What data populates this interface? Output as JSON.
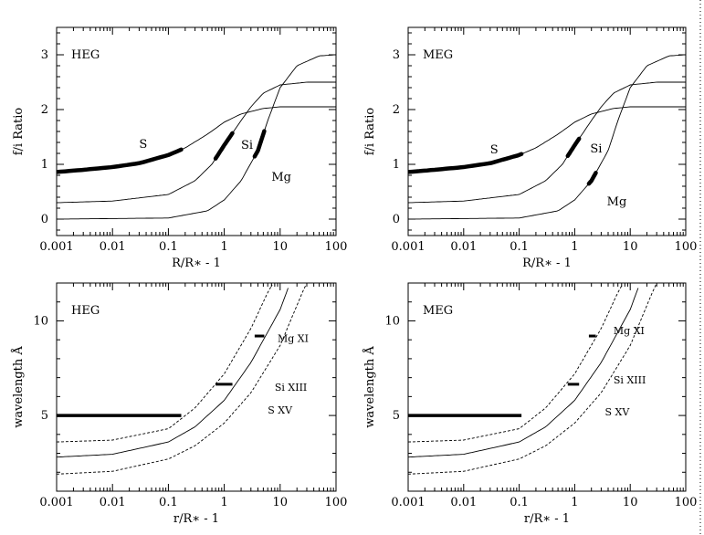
{
  "chart_data": [
    {
      "id": "heg-ratio",
      "type": "line",
      "panel_label": "HEG",
      "xlabel": "R/R∗ - 1",
      "ylabel": "f/i Ratio",
      "xscale": "log",
      "xlim": [
        0.001,
        100
      ],
      "ylim": [
        -0.3,
        3.5
      ],
      "x_ticks": [
        0.001,
        0.01,
        0.1,
        1,
        10,
        100
      ],
      "x_tick_labels": [
        "0.001",
        "0.01",
        "0.1",
        "1",
        "10",
        "100"
      ],
      "y_ticks": [
        0,
        1,
        2,
        3
      ],
      "y_tick_labels": [
        "0",
        "1",
        "2",
        "3"
      ],
      "series": [
        {
          "name": "S",
          "style": "solid",
          "label_at": [
            0.03,
            1.3
          ],
          "points": [
            [
              0.001,
              0.86
            ],
            [
              0.003,
              0.9
            ],
            [
              0.01,
              0.95
            ],
            [
              0.03,
              1.02
            ],
            [
              0.1,
              1.17
            ],
            [
              0.2,
              1.3
            ],
            [
              0.5,
              1.55
            ],
            [
              1,
              1.77
            ],
            [
              2,
              1.92
            ],
            [
              5,
              2.02
            ],
            [
              10,
              2.05
            ],
            [
              30,
              2.05
            ],
            [
              100,
              2.05
            ]
          ],
          "observed": [
            0.001,
            0.17
          ]
        },
        {
          "name": "Si",
          "style": "solid",
          "label_at": [
            2.0,
            1.28
          ],
          "points": [
            [
              0.001,
              0.3
            ],
            [
              0.01,
              0.33
            ],
            [
              0.1,
              0.45
            ],
            [
              0.3,
              0.7
            ],
            [
              0.6,
              1.0
            ],
            [
              1,
              1.35
            ],
            [
              2,
              1.8
            ],
            [
              3,
              2.05
            ],
            [
              5,
              2.3
            ],
            [
              10,
              2.45
            ],
            [
              30,
              2.5
            ],
            [
              100,
              2.5
            ]
          ],
          "observed": [
            0.7,
            1.4
          ]
        },
        {
          "name": "Mg",
          "style": "solid",
          "label_at": [
            7.0,
            0.7
          ],
          "points": [
            [
              0.001,
              0.0
            ],
            [
              0.1,
              0.02
            ],
            [
              0.5,
              0.15
            ],
            [
              1,
              0.35
            ],
            [
              2,
              0.7
            ],
            [
              4,
              1.25
            ],
            [
              6,
              1.8
            ],
            [
              10,
              2.4
            ],
            [
              20,
              2.8
            ],
            [
              50,
              2.98
            ],
            [
              100,
              3.0
            ]
          ],
          "observed": [
            3.5,
            5.2
          ]
        }
      ]
    },
    {
      "id": "meg-ratio",
      "type": "line",
      "panel_label": "MEG",
      "xlabel": "R/R∗ - 1",
      "ylabel": "f/i Ratio",
      "xscale": "log",
      "xlim": [
        0.001,
        100
      ],
      "ylim": [
        -0.3,
        3.5
      ],
      "x_ticks": [
        0.001,
        0.01,
        0.1,
        1,
        10,
        100
      ],
      "x_tick_labels": [
        "0.001",
        "0.01",
        "0.1",
        "1",
        "10",
        "100"
      ],
      "y_ticks": [
        0,
        1,
        2,
        3
      ],
      "y_tick_labels": [
        "0",
        "1",
        "2",
        "3"
      ],
      "series": [
        {
          "name": "S",
          "style": "solid",
          "label_at": [
            0.03,
            1.2
          ],
          "points": [
            [
              0.001,
              0.86
            ],
            [
              0.003,
              0.9
            ],
            [
              0.01,
              0.95
            ],
            [
              0.03,
              1.02
            ],
            [
              0.1,
              1.17
            ],
            [
              0.2,
              1.3
            ],
            [
              0.5,
              1.55
            ],
            [
              1,
              1.77
            ],
            [
              2,
              1.92
            ],
            [
              5,
              2.02
            ],
            [
              10,
              2.05
            ],
            [
              30,
              2.05
            ],
            [
              100,
              2.05
            ]
          ],
          "observed": [
            0.001,
            0.11
          ]
        },
        {
          "name": "Si",
          "style": "solid",
          "label_at": [
            1.9,
            1.22
          ],
          "points": [
            [
              0.001,
              0.3
            ],
            [
              0.01,
              0.33
            ],
            [
              0.1,
              0.45
            ],
            [
              0.3,
              0.7
            ],
            [
              0.6,
              1.0
            ],
            [
              1,
              1.35
            ],
            [
              2,
              1.8
            ],
            [
              3,
              2.05
            ],
            [
              5,
              2.3
            ],
            [
              10,
              2.45
            ],
            [
              30,
              2.5
            ],
            [
              100,
              2.5
            ]
          ],
          "observed": [
            0.75,
            1.2
          ]
        },
        {
          "name": "Mg",
          "style": "solid",
          "label_at": [
            3.8,
            0.25
          ],
          "points": [
            [
              0.001,
              0.0
            ],
            [
              0.1,
              0.02
            ],
            [
              0.5,
              0.15
            ],
            [
              1,
              0.35
            ],
            [
              2,
              0.7
            ],
            [
              4,
              1.25
            ],
            [
              6,
              1.8
            ],
            [
              10,
              2.4
            ],
            [
              20,
              2.8
            ],
            [
              50,
              2.98
            ],
            [
              100,
              3.0
            ]
          ],
          "observed": [
            1.8,
            2.4
          ]
        }
      ]
    },
    {
      "id": "heg-wavelength",
      "type": "line",
      "panel_label": "HEG",
      "xlabel": "r/R∗ - 1",
      "ylabel": "wavelength Å",
      "xscale": "log",
      "xlim": [
        0.001,
        100
      ],
      "ylim": [
        1,
        12
      ],
      "x_ticks": [
        0.001,
        0.01,
        0.1,
        1,
        10,
        100
      ],
      "x_tick_labels": [
        "0.001",
        "0.01",
        "0.1",
        "1",
        "10",
        "100"
      ],
      "y_ticks": [
        5,
        10
      ],
      "y_tick_labels": [
        "5",
        "10"
      ],
      "series": [
        {
          "name": "Mg XI",
          "style": "dashed",
          "label_at": [
            9.0,
            8.9
          ],
          "points": [
            [
              0.001,
              3.6
            ],
            [
              0.01,
              3.7
            ],
            [
              0.1,
              4.3
            ],
            [
              0.3,
              5.4
            ],
            [
              1,
              7.2
            ],
            [
              3,
              9.6
            ],
            [
              6,
              11.5
            ],
            [
              7.5,
              12
            ]
          ]
        },
        {
          "name": "Si XIII",
          "style": "solid",
          "label_at": [
            8.0,
            6.3
          ],
          "points": [
            [
              0.001,
              2.8
            ],
            [
              0.01,
              2.95
            ],
            [
              0.1,
              3.6
            ],
            [
              0.3,
              4.4
            ],
            [
              1,
              5.8
            ],
            [
              3,
              7.8
            ],
            [
              10,
              10.6
            ],
            [
              15,
              12
            ]
          ]
        },
        {
          "name": "S XV",
          "style": "dashed",
          "label_at": [
            6.0,
            5.1
          ],
          "points": [
            [
              0.001,
              1.9
            ],
            [
              0.01,
              2.05
            ],
            [
              0.1,
              2.7
            ],
            [
              0.3,
              3.4
            ],
            [
              1,
              4.6
            ],
            [
              3,
              6.2
            ],
            [
              10,
              8.7
            ],
            [
              25,
              11.5
            ],
            [
              30,
              12
            ]
          ]
        }
      ],
      "observed_ranges": [
        {
          "series": "S XV",
          "y": 5.0,
          "x": [
            0.001,
            0.17
          ]
        },
        {
          "series": "Si XIII",
          "y": 6.65,
          "x": [
            0.7,
            1.4
          ]
        },
        {
          "series": "Mg XI",
          "y": 9.2,
          "x": [
            3.5,
            5.2
          ]
        }
      ]
    },
    {
      "id": "meg-wavelength",
      "type": "line",
      "panel_label": "MEG",
      "xlabel": "r/R∗ - 1",
      "ylabel": "wavelength Å",
      "xscale": "log",
      "xlim": [
        0.001,
        100
      ],
      "ylim": [
        1,
        12
      ],
      "x_ticks": [
        0.001,
        0.01,
        0.1,
        1,
        10,
        100
      ],
      "x_tick_labels": [
        "0.001",
        "0.01",
        "0.1",
        "1",
        "10",
        "100"
      ],
      "y_ticks": [
        5,
        10
      ],
      "y_tick_labels": [
        "5",
        "10"
      ],
      "series": [
        {
          "name": "Mg XI",
          "style": "dashed",
          "label_at": [
            5.0,
            9.3
          ],
          "points": [
            [
              0.001,
              3.6
            ],
            [
              0.01,
              3.7
            ],
            [
              0.1,
              4.3
            ],
            [
              0.3,
              5.4
            ],
            [
              1,
              7.2
            ],
            [
              3,
              9.6
            ],
            [
              6,
              11.5
            ],
            [
              7.5,
              12
            ]
          ]
        },
        {
          "name": "Si XIII",
          "style": "solid",
          "label_at": [
            5.0,
            6.7
          ],
          "points": [
            [
              0.001,
              2.8
            ],
            [
              0.01,
              2.95
            ],
            [
              0.1,
              3.6
            ],
            [
              0.3,
              4.4
            ],
            [
              1,
              5.8
            ],
            [
              3,
              7.8
            ],
            [
              10,
              10.6
            ],
            [
              15,
              12
            ]
          ]
        },
        {
          "name": "S XV",
          "style": "dashed",
          "label_at": [
            3.5,
            5.0
          ],
          "points": [
            [
              0.001,
              1.9
            ],
            [
              0.01,
              2.05
            ],
            [
              0.1,
              2.7
            ],
            [
              0.3,
              3.4
            ],
            [
              1,
              4.6
            ],
            [
              3,
              6.2
            ],
            [
              10,
              8.7
            ],
            [
              25,
              11.5
            ],
            [
              30,
              12
            ]
          ]
        }
      ],
      "observed_ranges": [
        {
          "series": "S XV",
          "y": 5.0,
          "x": [
            0.001,
            0.11
          ]
        },
        {
          "series": "Si XIII",
          "y": 6.65,
          "x": [
            0.75,
            1.2
          ]
        },
        {
          "series": "Mg XI",
          "y": 9.2,
          "x": [
            1.8,
            2.4
          ]
        }
      ]
    }
  ]
}
